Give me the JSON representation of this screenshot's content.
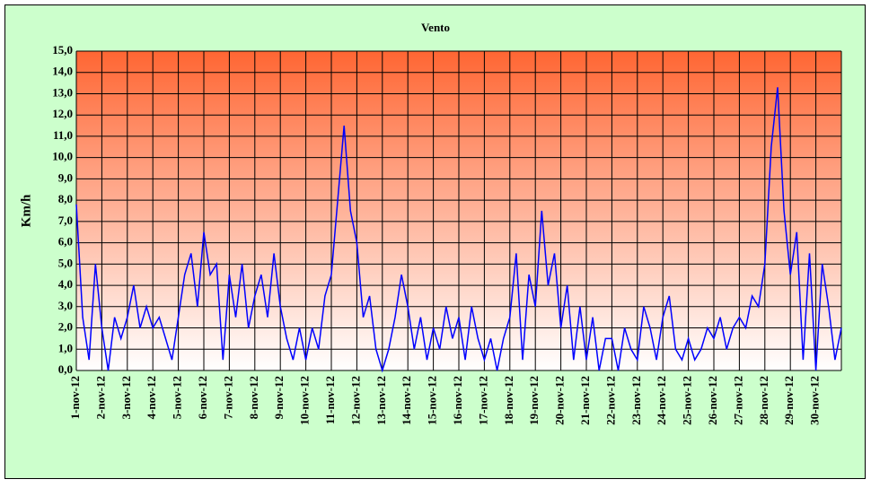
{
  "chart_data": {
    "type": "line",
    "title": "Vento",
    "y_label": "Km/h",
    "x": [
      1,
      1.25,
      1.5,
      1.75,
      2,
      2.25,
      2.5,
      2.75,
      3,
      3.25,
      3.5,
      3.75,
      4,
      4.25,
      4.5,
      4.75,
      5,
      5.25,
      5.5,
      5.75,
      6,
      6.25,
      6.5,
      6.75,
      7,
      7.25,
      7.5,
      7.75,
      8,
      8.25,
      8.5,
      8.75,
      9,
      9.25,
      9.5,
      9.75,
      10,
      10.25,
      10.5,
      10.75,
      11,
      11.25,
      11.5,
      11.75,
      12,
      12.25,
      12.5,
      12.75,
      13,
      13.25,
      13.5,
      13.75,
      14,
      14.25,
      14.5,
      14.75,
      15,
      15.25,
      15.5,
      15.75,
      16,
      16.25,
      16.5,
      16.75,
      17,
      17.25,
      17.5,
      17.75,
      18,
      18.25,
      18.5,
      18.75,
      19,
      19.25,
      19.5,
      19.75,
      20,
      20.25,
      20.5,
      20.75,
      21,
      21.25,
      21.5,
      21.75,
      22,
      22.25,
      22.5,
      22.75,
      23,
      23.25,
      23.5,
      23.75,
      24,
      24.25,
      24.5,
      24.75,
      25,
      25.25,
      25.5,
      25.75,
      26,
      26.25,
      26.5,
      26.75,
      27,
      27.25,
      27.5,
      27.75,
      28,
      28.25,
      28.5,
      28.75,
      29,
      29.25,
      29.5,
      29.75,
      30,
      30.25,
      30.5,
      30.75,
      31
    ],
    "series": [
      {
        "name": "Vento",
        "color": "#0000ff",
        "values": [
          7.8,
          2.5,
          0.5,
          5.0,
          2.0,
          0.0,
          2.5,
          1.5,
          2.5,
          4.0,
          2.0,
          3.0,
          2.0,
          2.5,
          1.5,
          0.5,
          2.5,
          4.5,
          5.5,
          3.0,
          6.5,
          4.5,
          5.0,
          0.5,
          4.5,
          2.5,
          5.0,
          2.0,
          3.5,
          4.5,
          2.5,
          5.5,
          3.0,
          1.5,
          0.5,
          2.0,
          0.5,
          2.0,
          1.0,
          3.5,
          4.5,
          8.0,
          11.5,
          7.5,
          6.0,
          2.5,
          3.5,
          1.0,
          0.0,
          1.0,
          2.5,
          4.5,
          3.0,
          1.0,
          2.5,
          0.5,
          2.0,
          1.0,
          3.0,
          1.5,
          2.5,
          0.5,
          3.0,
          1.5,
          0.5,
          1.5,
          0.0,
          1.5,
          2.5,
          5.5,
          0.5,
          4.5,
          3.0,
          7.5,
          4.0,
          5.5,
          2.0,
          4.0,
          0.5,
          3.0,
          0.5,
          2.5,
          0.0,
          1.5,
          1.5,
          0.0,
          2.0,
          1.0,
          0.5,
          3.0,
          2.0,
          0.5,
          2.5,
          3.5,
          1.0,
          0.5,
          1.5,
          0.5,
          1.0,
          2.0,
          1.5,
          2.5,
          1.0,
          2.0,
          2.5,
          2.0,
          3.5,
          3.0,
          5.0,
          10.5,
          13.3,
          7.5,
          4.5,
          6.5,
          0.5,
          5.5,
          0.0,
          5.0,
          3.0,
          0.5,
          2.0
        ]
      }
    ],
    "xlim": [
      1,
      31
    ],
    "xticks": [
      {
        "value": 1,
        "label": "1-nov-12"
      },
      {
        "value": 2,
        "label": "2-nov-12"
      },
      {
        "value": 3,
        "label": "3-nov-12"
      },
      {
        "value": 4,
        "label": "4-nov-12"
      },
      {
        "value": 5,
        "label": "5-nov-12"
      },
      {
        "value": 6,
        "label": "6-nov-12"
      },
      {
        "value": 7,
        "label": "7-nov-12"
      },
      {
        "value": 8,
        "label": "8-nov-12"
      },
      {
        "value": 9,
        "label": "9-nov-12"
      },
      {
        "value": 10,
        "label": "10-nov-12"
      },
      {
        "value": 11,
        "label": "11-nov-12"
      },
      {
        "value": 12,
        "label": "12-nov-12"
      },
      {
        "value": 13,
        "label": "13-nov-12"
      },
      {
        "value": 14,
        "label": "14-nov-12"
      },
      {
        "value": 15,
        "label": "15-nov-12"
      },
      {
        "value": 16,
        "label": "16-nov-12"
      },
      {
        "value": 17,
        "label": "17-nov-12"
      },
      {
        "value": 18,
        "label": "18-nov-12"
      },
      {
        "value": 19,
        "label": "19-nov-12"
      },
      {
        "value": 20,
        "label": "20-nov-12"
      },
      {
        "value": 21,
        "label": "21-nov-12"
      },
      {
        "value": 22,
        "label": "22-nov-12"
      },
      {
        "value": 23,
        "label": "23-nov-12"
      },
      {
        "value": 24,
        "label": "24-nov-12"
      },
      {
        "value": 25,
        "label": "25-nov-12"
      },
      {
        "value": 26,
        "label": "26-nov-12"
      },
      {
        "value": 27,
        "label": "27-nov-12"
      },
      {
        "value": 28,
        "label": "28-nov-12"
      },
      {
        "value": 29,
        "label": "29-nov-12"
      },
      {
        "value": 30,
        "label": "30-nov-12"
      }
    ],
    "ylim": [
      0,
      15
    ],
    "yticks": [
      {
        "value": 0,
        "label": "0,0"
      },
      {
        "value": 1,
        "label": "1,0"
      },
      {
        "value": 2,
        "label": "2,0"
      },
      {
        "value": 3,
        "label": "3,0"
      },
      {
        "value": 4,
        "label": "4,0"
      },
      {
        "value": 5,
        "label": "5,0"
      },
      {
        "value": 6,
        "label": "6,0"
      },
      {
        "value": 7,
        "label": "7,0"
      },
      {
        "value": 8,
        "label": "8,0"
      },
      {
        "value": 9,
        "label": "9,0"
      },
      {
        "value": 10,
        "label": "10,0"
      },
      {
        "value": 11,
        "label": "11,0"
      },
      {
        "value": 12,
        "label": "12,0"
      },
      {
        "value": 13,
        "label": "13,0"
      },
      {
        "value": 14,
        "label": "14,0"
      },
      {
        "value": 15,
        "label": "15,0"
      }
    ],
    "grid": true
  }
}
